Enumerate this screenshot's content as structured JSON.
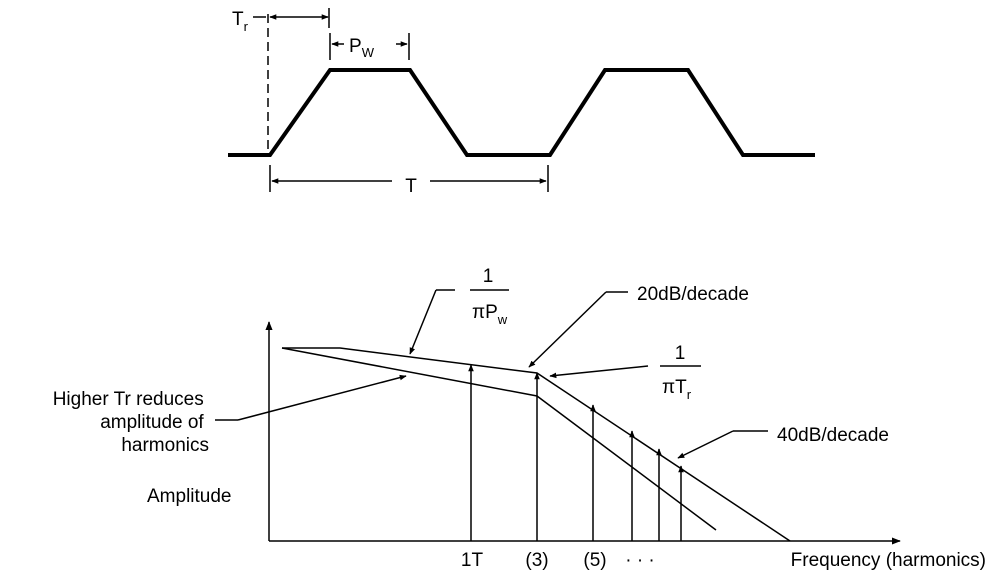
{
  "waveform": {
    "tr_label": "T",
    "tr_sub": "r",
    "pw_label": "P",
    "pw_sub": "W",
    "period_label": "T"
  },
  "spectrum": {
    "pw_frac_num": "1",
    "pw_frac_den_pi": "π",
    "pw_frac_den_p": "P",
    "pw_frac_den_sub": "w",
    "tr_frac_num": "1",
    "tr_frac_den_pi": "π",
    "tr_frac_den_t": "T",
    "tr_frac_den_sub": "r",
    "slope_20": "20dB/decade",
    "slope_40": "40dB/decade",
    "higher_tr_line1": "Higher Tr reduces",
    "higher_tr_line2": "amplitude of",
    "higher_tr_line3": "harmonics",
    "amplitude_label": "Amplitude",
    "x_label": "Frequency (harmonics)",
    "tick_1t": "1T",
    "tick_3": "(3)",
    "tick_5": "(5)",
    "tick_dots": "· · ·"
  },
  "colors": {
    "ink": "#000000",
    "background": "#ffffff"
  }
}
